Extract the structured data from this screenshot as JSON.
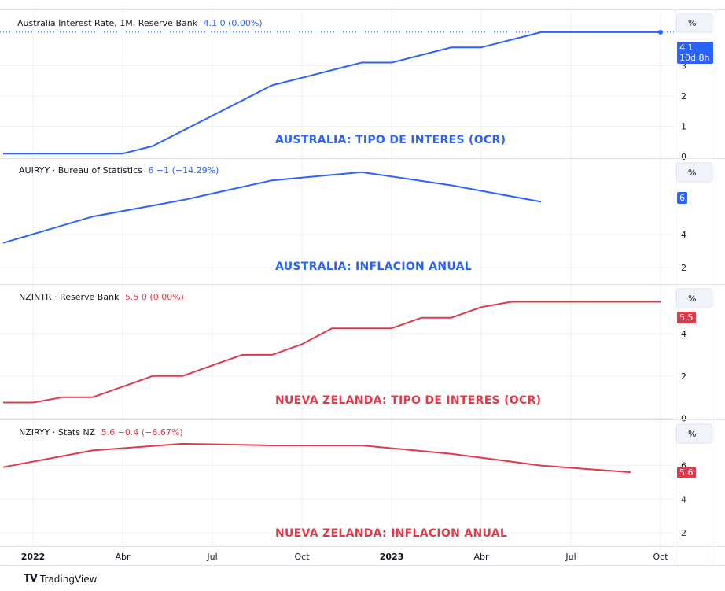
{
  "colors": {
    "blue": "#2962ff",
    "red": "#e03a4a",
    "axis": "#131722"
  },
  "x_ticks": [
    {
      "label": "2022",
      "date": "2022-01",
      "bold": true
    },
    {
      "label": "Abr",
      "date": "2022-04",
      "bold": false
    },
    {
      "label": "Jul",
      "date": "2022-07",
      "bold": false
    },
    {
      "label": "Oct",
      "date": "2022-10",
      "bold": false
    },
    {
      "label": "2023",
      "date": "2023-01",
      "bold": true
    },
    {
      "label": "Abr",
      "date": "2023-04",
      "bold": false
    },
    {
      "label": "Jul",
      "date": "2023-07",
      "bold": false
    },
    {
      "label": "Oct",
      "date": "2023-10",
      "bold": false
    }
  ],
  "branding": {
    "logo": "TV",
    "name": "TradingView"
  },
  "chart_data": [
    {
      "type": "line",
      "legend": {
        "name": "Australia Interest Rate, 1M, Reserve Bank",
        "values": "4.1  0 (0.00%)"
      },
      "annotation": "AUSTRALIA: TIPO DE INTERES (OCR)",
      "color": "#2962ff",
      "unit_label": "%",
      "yticks": [
        0,
        1,
        2,
        3
      ],
      "ylim": [
        -0.05,
        4.85
      ],
      "last_value": "4.1",
      "countdown": "10d 8h",
      "series": [
        {
          "x": [
            "2021-12",
            "2022-01",
            "2022-02",
            "2022-03",
            "2022-04",
            "2022-05",
            "2022-06",
            "2022-07",
            "2022-08",
            "2022-09",
            "2022-10",
            "2022-11",
            "2022-12",
            "2023-01",
            "2023-02",
            "2023-03",
            "2023-04",
            "2023-05",
            "2023-06",
            "2023-07",
            "2023-08",
            "2023-09",
            "2023-10"
          ],
          "values": [
            0.1,
            0.1,
            0.1,
            0.1,
            0.1,
            0.35,
            0.85,
            1.35,
            1.85,
            2.35,
            2.6,
            2.85,
            3.1,
            3.1,
            3.35,
            3.6,
            3.6,
            3.85,
            4.1,
            4.1,
            4.1,
            4.1,
            4.1
          ]
        }
      ]
    },
    {
      "type": "line",
      "legend": {
        "name": "AUIRYY · Bureau of Statistics",
        "values": "6  −1 (−14.29%)"
      },
      "annotation": "AUSTRALIA: INFLACION ANUAL",
      "color": "#2962ff",
      "unit_label": "%",
      "yticks": [
        2,
        4
      ],
      "ylim": [
        1.0,
        8.6
      ],
      "last_value": "6",
      "series": [
        {
          "x": [
            "2021-12",
            "2022-03",
            "2022-06",
            "2022-09",
            "2022-12",
            "2023-03",
            "2023-06"
          ],
          "values": [
            3.5,
            5.1,
            6.1,
            7.3,
            7.8,
            7.0,
            6.0
          ]
        }
      ]
    },
    {
      "type": "line",
      "legend": {
        "name": "NZINTR · Reserve Bank",
        "values": "5.5  0 (0.00%)"
      },
      "annotation": "NUEVA ZELANDA: TIPO DE INTERES (OCR)",
      "color": "#e03a4a",
      "unit_label": "%",
      "yticks": [
        0,
        2,
        4
      ],
      "ylim": [
        -0.05,
        6.3
      ],
      "last_value": "5.5",
      "series": [
        {
          "x": [
            "2021-12",
            "2022-01",
            "2022-02",
            "2022-03",
            "2022-04",
            "2022-05",
            "2022-06",
            "2022-07",
            "2022-08",
            "2022-09",
            "2022-10",
            "2022-11",
            "2022-12",
            "2023-01",
            "2023-02",
            "2023-03",
            "2023-04",
            "2023-05",
            "2023-06",
            "2023-07",
            "2023-08",
            "2023-09",
            "2023-10"
          ],
          "values": [
            0.75,
            0.75,
            1.0,
            1.0,
            1.5,
            2.0,
            2.0,
            2.5,
            3.0,
            3.0,
            3.5,
            4.25,
            4.25,
            4.25,
            4.75,
            4.75,
            5.25,
            5.5,
            5.5,
            5.5,
            5.5,
            5.5,
            5.5
          ]
        }
      ]
    },
    {
      "type": "line",
      "legend": {
        "name": "NZIRYY · Stats NZ",
        "values": "5.6  −0.4 (−6.67%)"
      },
      "annotation": "NUEVA ZELANDA: INFLACION ANUAL",
      "color": "#e03a4a",
      "unit_label": "%",
      "yticks": [
        2,
        4,
        6
      ],
      "ylim": [
        1.2,
        8.7
      ],
      "last_value": "5.6",
      "series": [
        {
          "x": [
            "2021-12",
            "2022-03",
            "2022-06",
            "2022-09",
            "2022-12",
            "2023-03",
            "2023-06",
            "2023-09"
          ],
          "values": [
            5.9,
            6.9,
            7.3,
            7.2,
            7.2,
            6.7,
            6.0,
            5.6
          ]
        }
      ]
    }
  ]
}
